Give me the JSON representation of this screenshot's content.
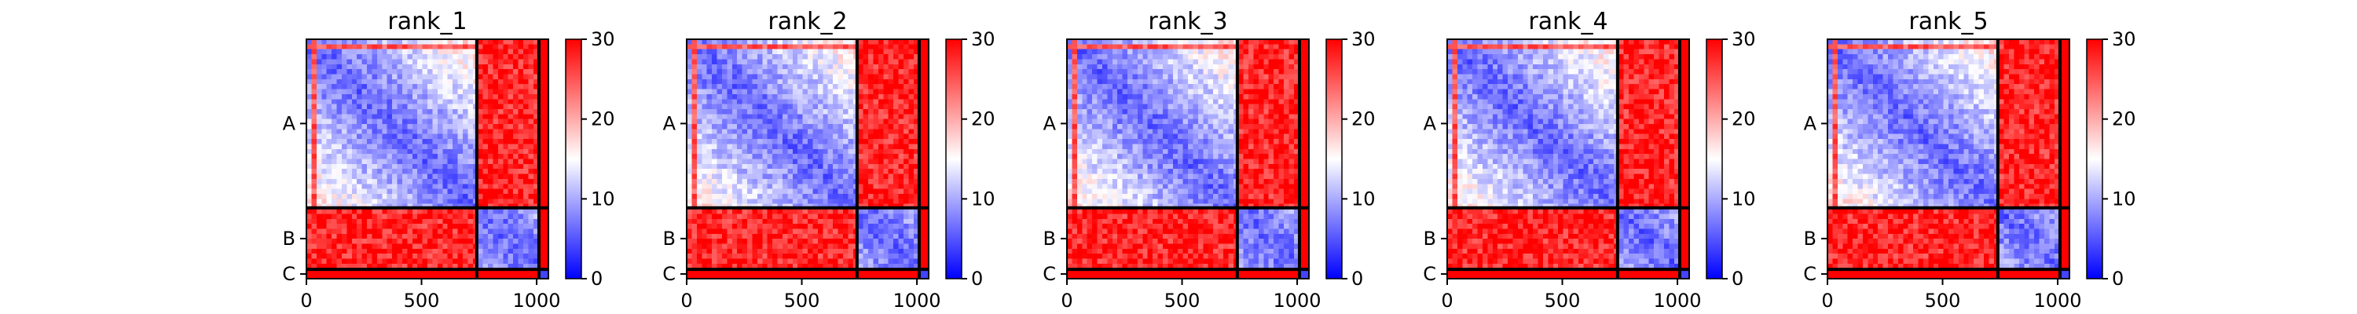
{
  "chart_data": {
    "type": "heatmap",
    "panels": [
      {
        "title": "rank_1",
        "variant": 1
      },
      {
        "title": "rank_2",
        "variant": 2
      },
      {
        "title": "rank_3",
        "variant": 3
      },
      {
        "title": "rank_4",
        "variant": 4
      },
      {
        "title": "rank_5",
        "variant": 5
      }
    ],
    "x_ticks": [
      0,
      500,
      1000
    ],
    "xlim": [
      0,
      1051
    ],
    "ylim": [
      1051,
      0
    ],
    "chains": [
      {
        "label": "A",
        "start": 0,
        "end": 740
      },
      {
        "label": "B",
        "start": 740,
        "end": 1010
      },
      {
        "label": "C",
        "start": 1010,
        "end": 1051
      }
    ],
    "colorbar": {
      "range": [
        0,
        30
      ],
      "ticks": [
        0,
        10,
        20,
        30
      ],
      "colormap": "bwr",
      "low_color": "#0000ff",
      "mid_color": "#ffffff",
      "high_color": "#ff0000"
    }
  }
}
